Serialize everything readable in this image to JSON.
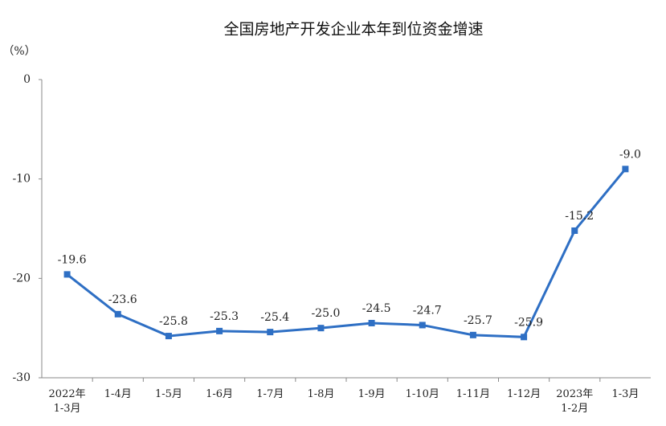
{
  "chart_data": {
    "type": "line",
    "title": "全国房地产开发企业本年到位资金增速",
    "y_unit": "（%）",
    "categories": [
      "2022年\n1-3月",
      "1-4月",
      "1-5月",
      "1-6月",
      "1-7月",
      "1-8月",
      "1-9月",
      "1-10月",
      "1-11月",
      "1-12月",
      "2023年\n1-2月",
      "1-3月"
    ],
    "values": [
      -19.6,
      -23.6,
      -25.8,
      -25.3,
      -25.4,
      -25.0,
      -24.5,
      -24.7,
      -25.7,
      -25.9,
      -15.2,
      -9.0
    ],
    "value_labels": [
      "-19.6",
      "-23.6",
      "-25.8",
      "-25.3",
      "-25.4",
      "-25.0",
      "-24.5",
      "-24.7",
      "-25.7",
      "-25.9",
      "-15.2",
      "-9.0"
    ],
    "color": "#2e6fc4",
    "ylim": [
      -30,
      0
    ],
    "yticks": [
      0,
      -10,
      -20,
      -30
    ]
  }
}
